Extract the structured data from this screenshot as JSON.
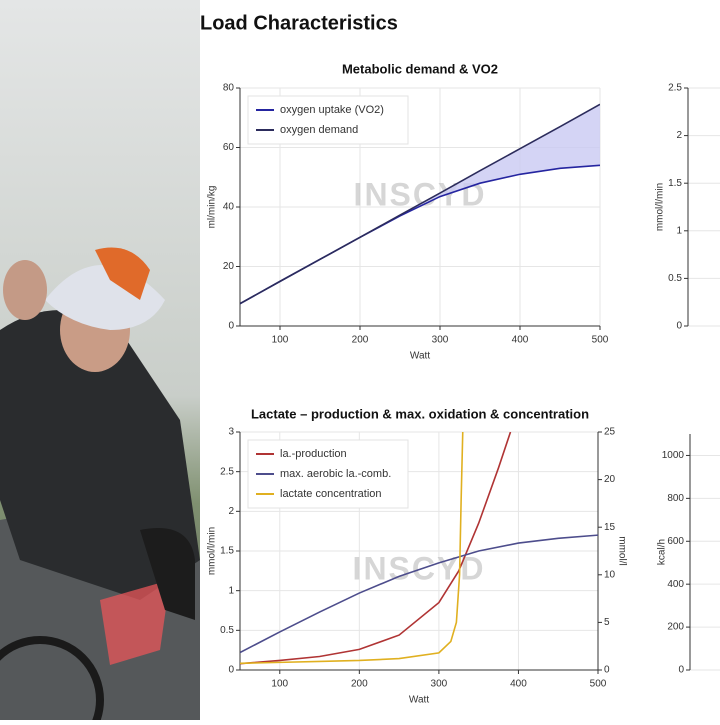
{
  "heading": "Load Characteristics",
  "chart_data": [
    {
      "type": "line",
      "title": "Metabolic demand & VO2",
      "watermark": "INSCYD",
      "xlabel": "Watt",
      "ylabel": "ml/min/kg",
      "xlim": [
        50,
        500
      ],
      "xticks": [
        100,
        200,
        300,
        400,
        500
      ],
      "ylim": [
        0,
        80
      ],
      "yticks": [
        0,
        20,
        40,
        60,
        80
      ],
      "grid": true,
      "legend": "upper left",
      "fill_between": true,
      "fill_color": "#c9c9f2",
      "x": [
        50,
        100,
        150,
        200,
        250,
        300,
        350,
        400,
        450,
        500
      ],
      "series": [
        {
          "name": "oxygen uptake (VO2)",
          "color": "#2525a0",
          "values": [
            7.5,
            15,
            22.4,
            29.8,
            37,
            43.5,
            48,
            51,
            53,
            54
          ]
        },
        {
          "name": "oxygen demand",
          "color": "#2c2c5c",
          "values": [
            7.5,
            15,
            22.4,
            29.8,
            37.3,
            44.7,
            52.2,
            59.6,
            67,
            74.5
          ]
        }
      ]
    },
    {
      "type": "line",
      "title": "Lactate – production & max. oxidation & concentration",
      "watermark": "INSCYD",
      "xlabel": "Watt",
      "ylabel": "mmol/l/min",
      "y2label": "mmol/l",
      "xlim": [
        50,
        500
      ],
      "xticks": [
        100,
        200,
        300,
        400,
        500
      ],
      "ylim": [
        0,
        3
      ],
      "yticks": [
        0,
        0.5,
        1,
        1.5,
        2,
        2.5,
        3
      ],
      "y2lim": [
        0,
        25
      ],
      "y2ticks": [
        0,
        5,
        10,
        15,
        20,
        25
      ],
      "grid": true,
      "legend": "upper left",
      "series": [
        {
          "name": "la.-production",
          "color": "#b03434",
          "x": [
            50,
            100,
            150,
            200,
            250,
            300,
            325,
            350,
            375,
            390
          ],
          "values": [
            0.08,
            0.12,
            0.17,
            0.26,
            0.44,
            0.85,
            1.25,
            1.85,
            2.55,
            3.0
          ]
        },
        {
          "name": "max. aerobic la.-comb.",
          "color": "#4d4d8c",
          "x": [
            50,
            100,
            150,
            200,
            250,
            300,
            350,
            400,
            450,
            500
          ],
          "values": [
            0.22,
            0.48,
            0.73,
            0.97,
            1.18,
            1.35,
            1.5,
            1.6,
            1.66,
            1.7
          ]
        },
        {
          "name": "lactate concentration",
          "color": "#e0b020",
          "axis": "y2",
          "x": [
            50,
            100,
            150,
            200,
            250,
            300,
            315,
            322,
            326,
            328,
            330
          ],
          "values": [
            0.7,
            0.8,
            0.9,
            1.0,
            1.2,
            1.8,
            3,
            5,
            10,
            18,
            25
          ]
        }
      ]
    },
    {
      "type": "line",
      "ylabel": "mmol/l/min",
      "ylim": [
        0,
        2.5
      ],
      "yticks": [
        0,
        0.5,
        1,
        1.5,
        2,
        2.5
      ],
      "grid": true,
      "series": []
    },
    {
      "type": "line",
      "ylabel": "kcal/h",
      "ylim": [
        0,
        1100
      ],
      "yticks": [
        0,
        200,
        400,
        600,
        800,
        1000
      ],
      "grid": true,
      "series": []
    }
  ]
}
